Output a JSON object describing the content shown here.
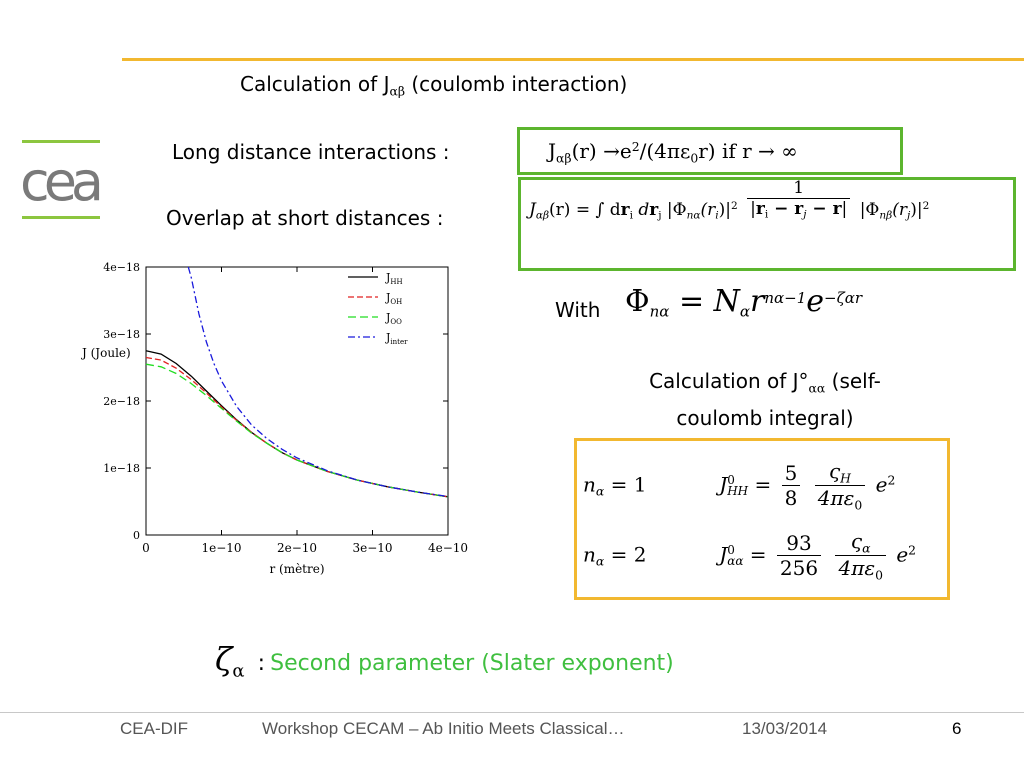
{
  "slide": {
    "title_prefix": "Calculation of J",
    "title_sub": "αβ",
    "title_suffix": " (coulomb interaction)",
    "long_label": "Long distance interactions :",
    "short_label": "Overlap at short distances :",
    "long_eq": {
      "J": "J",
      "sub": "αβ",
      "mid": "(r) →e",
      "sup": "2",
      "tail1": "/(4πε",
      "sub2": "0",
      "tail2": "r) if  r → ∞"
    },
    "short_eq": {
      "lhs": "J",
      "lhs_sub": "αβ",
      "lhs_arg": "(r) = ∫ d",
      "ri": "r",
      "ri_sub": "i",
      "d2": " d",
      "rj": "r",
      "rj_sub": "j",
      "phi1": "|Φ",
      "phi1_sub": "nα",
      "phi1_arg": "(r",
      "phi1_argsub": "i",
      "phi1_close": ")|",
      "sq1": "2",
      "num": "1",
      "den_ri": "r",
      "den_ri_sub": "i",
      "den_minus1": " − r",
      "den_rj_sub": "j",
      "den_minus2": " − r",
      "phi2": "|Φ",
      "phi2_sub": "nβ",
      "phi2_arg": "(r",
      "phi2_argsub": "j",
      "phi2_close": ")|",
      "sq2": "2"
    },
    "with_label": "With",
    "with_eq": {
      "phi": "Φ",
      "phi_sub": "nα",
      "eq": " = N",
      "N_sub": "α",
      "r": "r",
      "r_sup": "nα−1",
      "e": "e",
      "e_sup": "−ζαr"
    },
    "self_title_line1_prefix": "Calculation of J°",
    "self_title_line1_sub": "αα",
    "self_title_line1_suffix": " (self-",
    "self_title_line2": "coulomb integral)",
    "self_eq": {
      "row1_n": "n",
      "row1_n_sub": "α",
      "row1_val": " = 1",
      "row1_J": "J",
      "row1_J_sup": "0",
      "row1_J_sub": "HH",
      "row1_eq": "=",
      "row1_num": "5",
      "row1_den": "8",
      "row1_zeta": "ς",
      "row1_zeta_sub": "H",
      "row1_den2": "4πε",
      "row1_den2_sub": "0",
      "row1_e": "e",
      "row1_e_sup": "2",
      "row2_n": "n",
      "row2_n_sub": "α",
      "row2_val": " = 2",
      "row2_J": "J",
      "row2_J_sup": "0",
      "row2_J_sub": "αα",
      "row2_eq": "=",
      "row2_num": "93",
      "row2_den": "256",
      "row2_zeta": "ς",
      "row2_zeta_sub": "α",
      "row2_den2": "4πε",
      "row2_den2_sub": "0",
      "row2_e": "e",
      "row2_e_sup": "2"
    },
    "zeta_symbol": "ζ",
    "zeta_sub": "α",
    "zeta_colon": ":",
    "zeta_text": "Second parameter (Slater exponent)"
  },
  "logo": {
    "text": "cea"
  },
  "footer": {
    "org": "CEA-DIF",
    "event": "Workshop CECAM – Ab Initio Meets Classical…",
    "date": "13/03/2014",
    "page": "6"
  },
  "colors": {
    "accent_orange": "#f2b830",
    "accent_green": "#5cb52e",
    "slater_text": "#3fbf3f"
  },
  "chart_data": {
    "type": "line",
    "xlabel": "r (mètre)",
    "ylabel": "J (Joule)",
    "xlim": [
      0,
      4e-10
    ],
    "ylim": [
      0,
      4e-18
    ],
    "xticks": [
      "0",
      "1e−10",
      "2e−10",
      "3e−10",
      "4e−10"
    ],
    "yticks": [
      "0",
      "1e−18",
      "2e−18",
      "3e−18",
      "4e−18"
    ],
    "legend_position": "top-right",
    "x": [
      0,
      2e-11,
      4e-11,
      6e-11,
      8e-11,
      1e-10,
      1.2e-10,
      1.4e-10,
      1.6e-10,
      1.8e-10,
      2e-10,
      2.4e-10,
      2.8e-10,
      3.2e-10,
      3.6e-10,
      4e-10
    ],
    "series": [
      {
        "name": "J",
        "label_sub": "HH",
        "color": "#000000",
        "dash": "solid",
        "values": [
          2.75e-18,
          2.7e-18,
          2.56e-18,
          2.37e-18,
          2.15e-18,
          1.93e-18,
          1.72e-18,
          1.53e-18,
          1.37e-18,
          1.23e-18,
          1.12e-18,
          9.5e-19,
          8.2e-19,
          7.2e-19,
          6.4e-19,
          5.7e-19
        ]
      },
      {
        "name": "J",
        "label_sub": "OH",
        "color": "#e02020",
        "dash": "6,3",
        "values": [
          2.65e-18,
          2.61e-18,
          2.49e-18,
          2.32e-18,
          2.12e-18,
          1.91e-18,
          1.71e-18,
          1.53e-18,
          1.37e-18,
          1.23e-18,
          1.12e-18,
          9.5e-19,
          8.2e-19,
          7.2e-19,
          6.4e-19,
          5.7e-19
        ]
      },
      {
        "name": "J",
        "label_sub": "OO",
        "color": "#22dd22",
        "dash": "8,4",
        "values": [
          2.55e-18,
          2.51e-18,
          2.41e-18,
          2.26e-18,
          2.08e-18,
          1.89e-18,
          1.7e-18,
          1.52e-18,
          1.37e-18,
          1.23e-18,
          1.12e-18,
          9.5e-19,
          8.2e-19,
          7.2e-19,
          6.4e-19,
          5.7e-19
        ]
      },
      {
        "name": "J",
        "label_sub": "inter",
        "color": "#1a1adc",
        "dash": "7,3,2,3",
        "x": [
          5.6e-11,
          6e-11,
          7e-11,
          8e-11,
          9e-11,
          1e-10,
          1.2e-10,
          1.4e-10,
          1.6e-10,
          1.8e-10,
          2e-10,
          2.4e-10,
          2.8e-10,
          3.2e-10,
          3.6e-10,
          4e-10
        ],
        "values": [
          4e-18,
          3.84e-18,
          3.3e-18,
          2.88e-18,
          2.56e-18,
          2.3e-18,
          1.92e-18,
          1.64e-18,
          1.44e-18,
          1.28e-18,
          1.15e-18,
          9.6e-19,
          8.2e-19,
          7.2e-19,
          6.4e-19,
          5.75e-19
        ]
      }
    ]
  }
}
